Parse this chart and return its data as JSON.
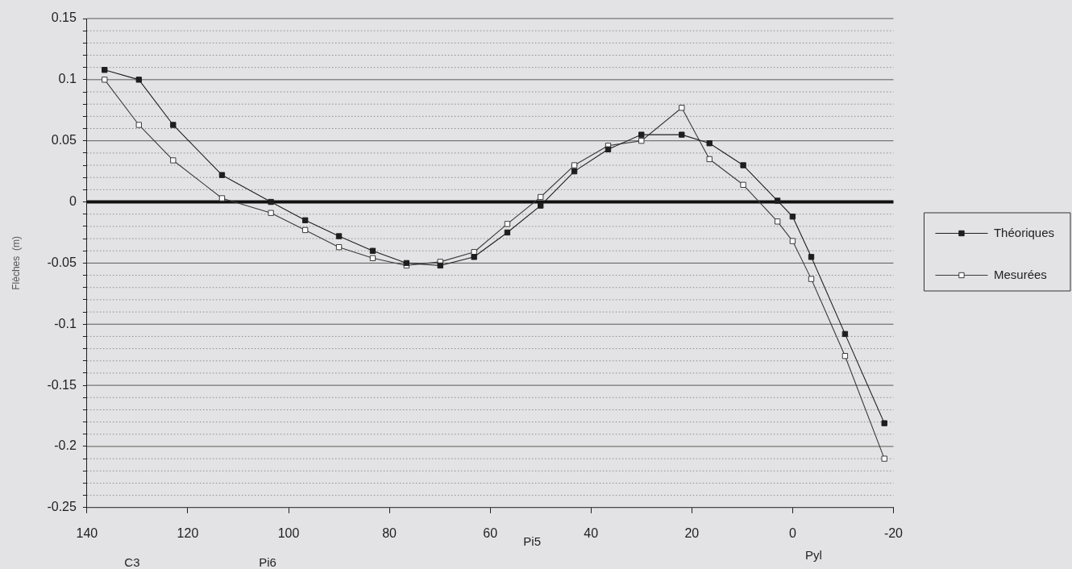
{
  "chart_data": {
    "type": "line",
    "ylabel": "Flèches  (m)",
    "x": [
      136.5,
      129.7,
      122.9,
      113.2,
      103.5,
      96.7,
      90,
      83.3,
      76.6,
      69.9,
      63.2,
      56.6,
      50,
      43.3,
      36.6,
      30,
      22,
      16.5,
      9.8,
      3,
      0,
      -3.7,
      -10.4,
      -18.2
    ],
    "series": [
      {
        "name": "Théoriques",
        "color": "#1e1e1e",
        "values": [
          0.108,
          0.1,
          0.063,
          0.022,
          0,
          -0.015,
          -0.028,
          -0.04,
          -0.05,
          -0.052,
          -0.045,
          -0.025,
          -0.003,
          0.025,
          0.043,
          0.055,
          0.055,
          0.048,
          0.03,
          0.001,
          -0.012,
          -0.045,
          -0.108,
          -0.181
        ]
      },
      {
        "name": "Mesurées",
        "color": "#3a3a3a",
        "colors": [
          "#ffffff",
          "#ffffff",
          "#ffffff",
          "#ffffff",
          "#ffffff",
          "#ffffff",
          "#ffffff",
          "#ffffff",
          "#ffffff",
          "#ffffff",
          "#ffffff",
          "#ffffff",
          "#ffffff",
          "#ffffff",
          "#ffffff",
          "#ffffff",
          "#ffffff",
          "#ffffff",
          "#ffffff",
          "#ffffff",
          "#ffffff",
          "#ffffff",
          "#ffffff",
          "#ffffff"
        ],
        "values": [
          0.1,
          0.063,
          0.034,
          0.003,
          -0.009,
          -0.023,
          -0.037,
          -0.046,
          -0.052,
          -0.049,
          -0.041,
          -0.018,
          0.004,
          0.03,
          0.046,
          0.05,
          0.077,
          0.035,
          0.014,
          -0.016,
          -0.032,
          -0.063,
          -0.126,
          -0.21
        ]
      }
    ],
    "xlim": [
      140,
      -20
    ],
    "xticks": [
      140,
      120,
      100,
      80,
      60,
      40,
      20,
      0,
      -20
    ],
    "ylim": [
      -0.25,
      0.15
    ],
    "yticks": [
      -0.25,
      {
        "value": -0.24,
        "label": null
      },
      {
        "value": -0.23,
        "label": null
      },
      {
        "value": -0.22,
        "label": null
      },
      {
        "value": -0.21,
        "label": null
      },
      -0.2,
      {
        "value": -0.19,
        "label": null
      },
      {
        "value": -0.18,
        "label": null
      },
      {
        "value": -0.17,
        "label": null
      },
      {
        "value": -0.16,
        "label": null
      },
      -0.15,
      {
        "value": -0.14,
        "label": null
      },
      {
        "value": -0.13,
        "label": null
      },
      {
        "value": -0.12,
        "label": null
      },
      {
        "value": -0.11,
        "label": null
      },
      -0.1,
      {
        "value": -0.09,
        "label": null
      },
      {
        "value": -0.08,
        "label": null
      },
      {
        "value": -0.07,
        "label": null
      },
      {
        "value": -0.06,
        "label": null
      },
      -0.05,
      {
        "value": -0.04,
        "label": null
      },
      {
        "value": -0.03,
        "label": null
      },
      {
        "value": -0.02,
        "label": null
      },
      {
        "value": -0.01,
        "label": null
      },
      0,
      {
        "value": 0.01,
        "label": null
      },
      {
        "value": 0.02,
        "label": null
      },
      {
        "value": 0.03,
        "label": null
      },
      {
        "value": 0.04,
        "label": null
      },
      0.05,
      {
        "value": 0.06,
        "label": null
      },
      {
        "value": 0.07,
        "label": null
      },
      {
        "value": 0.08,
        "label": null
      },
      {
        "value": 0.09,
        "label": null
      },
      0.1,
      {
        "value": 0.11,
        "label": null
      },
      {
        "value": 0.12,
        "label": null
      },
      {
        "value": 0.13,
        "label": null
      },
      {
        "value": 0.14,
        "label": null
      },
      0.15
    ],
    "ref_lines": [
      {
        "axis": "y",
        "value": 0,
        "color": "#111111"
      }
    ],
    "annotations": [
      "C3",
      "Pi6",
      "Pi5",
      "Pyl"
    ],
    "grid": "y",
    "legend": "right",
    "marker": "square",
    "line_style": "solid"
  }
}
